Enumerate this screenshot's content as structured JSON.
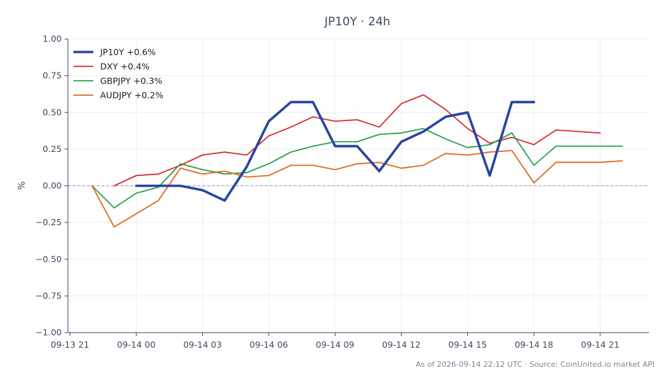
{
  "chart_data": {
    "type": "line",
    "title": "JP10Y · 24h",
    "xlabel": "",
    "ylabel": "%",
    "ylim": [
      -1.0,
      1.0
    ],
    "yticks": [
      "1.00",
      "0.75",
      "0.50",
      "0.25",
      "0.00",
      "−0.25",
      "−0.50",
      "−0.75",
      "−1.00"
    ],
    "xticks": [
      "09-13 21",
      "09-14 00",
      "09-14 03",
      "09-14 06",
      "09-14 09",
      "09-14 12",
      "09-14 15",
      "09-14 18",
      "09-14 21"
    ],
    "x_unit": "hourly, 2026-09-13 21:00 to 2026-09-14 23:00",
    "zero_line": "dashed",
    "grid": true,
    "legend_position": "top-left",
    "series": [
      {
        "name": "JP10Y +0.6%",
        "color": "#2a45a0",
        "line": "thick",
        "x": [
          "09-14 00",
          "09-14 01",
          "09-14 02",
          "09-14 03",
          "09-14 04",
          "09-14 05",
          "09-14 06",
          "09-14 07",
          "09-14 08",
          "09-14 09",
          "09-14 10",
          "09-14 11",
          "09-14 12",
          "09-14 13",
          "09-14 14",
          "09-14 15",
          "09-14 16",
          "09-14 17",
          "09-14 18"
        ],
        "values": [
          0.0,
          0.0,
          0.0,
          -0.03,
          -0.1,
          0.13,
          0.44,
          0.57,
          0.57,
          0.27,
          0.27,
          0.1,
          0.3,
          0.37,
          0.47,
          0.5,
          0.07,
          0.57,
          0.57
        ]
      },
      {
        "name": "DXY +0.4%",
        "color": "#d62f33",
        "line": "normal",
        "x": [
          "09-13 23",
          "09-14 00",
          "09-14 01",
          "09-14 02",
          "09-14 03",
          "09-14 04",
          "09-14 05",
          "09-14 06",
          "09-14 07",
          "09-14 08",
          "09-14 09",
          "09-14 10",
          "09-14 11",
          "09-14 12",
          "09-14 13",
          "09-14 14",
          "09-14 15",
          "09-14 16",
          "09-14 17",
          "09-14 18",
          "09-14 19",
          "09-14 20",
          "09-14 21"
        ],
        "values": [
          0.0,
          0.07,
          0.08,
          0.14,
          0.21,
          0.23,
          0.21,
          0.34,
          0.4,
          0.47,
          0.44,
          0.45,
          0.4,
          0.56,
          0.62,
          0.52,
          0.39,
          0.29,
          0.33,
          0.28,
          0.38,
          0.37,
          0.36
        ]
      },
      {
        "name": "GBPJPY +0.3%",
        "color": "#2ca04f",
        "line": "normal",
        "x": [
          "09-13 22",
          "09-13 23",
          "09-14 00",
          "09-14 01",
          "09-14 02",
          "09-14 03",
          "09-14 04",
          "09-14 05",
          "09-14 06",
          "09-14 07",
          "09-14 08",
          "09-14 09",
          "09-14 10",
          "09-14 11",
          "09-14 12",
          "09-14 13",
          "09-14 14",
          "09-14 15",
          "09-14 16",
          "09-14 17",
          "09-14 18",
          "09-14 19",
          "09-14 20",
          "09-14 21",
          "09-14 22"
        ],
        "values": [
          0.0,
          -0.15,
          -0.05,
          -0.01,
          0.15,
          0.11,
          0.08,
          0.09,
          0.15,
          0.23,
          0.27,
          0.3,
          0.3,
          0.35,
          0.36,
          0.39,
          0.32,
          0.26,
          0.28,
          0.36,
          0.14,
          0.27,
          0.27,
          0.27,
          0.27
        ]
      },
      {
        "name": "AUDJPY +0.2%",
        "color": "#e06a1b",
        "line": "normal",
        "x": [
          "09-13 22",
          "09-13 23",
          "09-14 00",
          "09-14 01",
          "09-14 02",
          "09-14 03",
          "09-14 04",
          "09-14 05",
          "09-14 06",
          "09-14 07",
          "09-14 08",
          "09-14 09",
          "09-14 10",
          "09-14 11",
          "09-14 12",
          "09-14 13",
          "09-14 14",
          "09-14 15",
          "09-14 16",
          "09-14 17",
          "09-14 18",
          "09-14 19",
          "09-14 20",
          "09-14 21",
          "09-14 22"
        ],
        "values": [
          0.0,
          -0.28,
          -0.19,
          -0.1,
          0.12,
          0.08,
          0.1,
          0.06,
          0.07,
          0.14,
          0.14,
          0.11,
          0.15,
          0.16,
          0.12,
          0.14,
          0.22,
          0.21,
          0.23,
          0.24,
          0.02,
          0.16,
          0.16,
          0.16,
          0.17
        ]
      }
    ]
  },
  "footer": "As of 2026-09-14 22:12 UTC · Source: CoinUnited.io market API"
}
